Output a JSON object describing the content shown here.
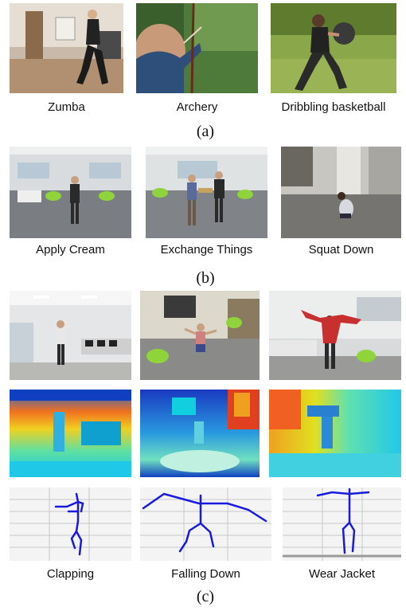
{
  "section_a": {
    "captions": [
      "Zumba",
      "Archery",
      "Dribbling basketball"
    ],
    "label": "(a)"
  },
  "section_b": {
    "captions": [
      "Apply Cream",
      "Exchange Things",
      "Squat Down"
    ],
    "label": "(b)"
  },
  "section_c": {
    "captions": [
      "Clapping",
      "Falling Down",
      "Wear Jacket"
    ],
    "label": "(c)"
  }
}
